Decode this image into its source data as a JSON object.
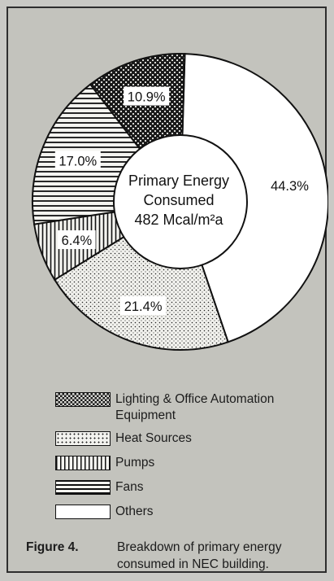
{
  "chart_data": {
    "type": "pie",
    "donut": true,
    "center_text": [
      "Primary Energy",
      "Consumed",
      "482 Mcal/m²a"
    ],
    "slices": [
      {
        "name": "Others",
        "value": 44.3,
        "label": "44.3%",
        "pattern": "white"
      },
      {
        "name": "Heat Sources",
        "value": 21.4,
        "label": "21.4%",
        "pattern": "dots"
      },
      {
        "name": "Pumps",
        "value": 6.4,
        "label": "6.4%",
        "pattern": "vlines"
      },
      {
        "name": "Fans",
        "value": 17.0,
        "label": "17.0%",
        "pattern": "hlines"
      },
      {
        "name": "Lighting & Office Automation Equipment",
        "value": 10.9,
        "label": "10.9%",
        "pattern": "check"
      }
    ],
    "legend": [
      {
        "label_lines": [
          "Lighting & Office Automation",
          "Equipment"
        ],
        "pattern": "check"
      },
      {
        "label_lines": [
          "Heat Sources"
        ],
        "pattern": "dots"
      },
      {
        "label_lines": [
          "Pumps"
        ],
        "pattern": "vlines"
      },
      {
        "label_lines": [
          "Fans"
        ],
        "pattern": "hlines"
      },
      {
        "label_lines": [
          "Others"
        ],
        "pattern": "white"
      }
    ],
    "legend_placement": "bottom"
  },
  "caption": {
    "label": "Figure 4.",
    "text": "Breakdown of primary energy consumed in NEC building."
  }
}
